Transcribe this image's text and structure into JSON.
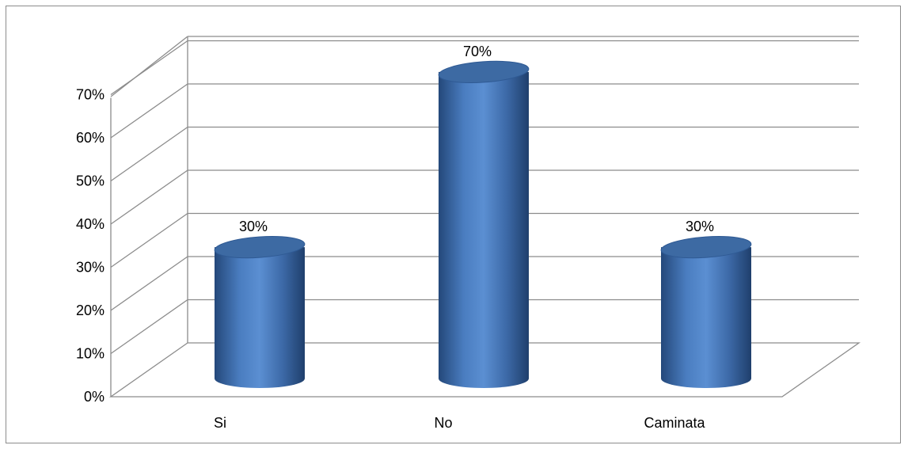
{
  "chart_data": {
    "type": "bar",
    "style": "3d-cylinder",
    "categories": [
      "Si",
      "No",
      "Caminata"
    ],
    "values": [
      30,
      70,
      30
    ],
    "data_labels": [
      "30%",
      "70%",
      "30%"
    ],
    "title": "",
    "xlabel": "",
    "ylabel": "",
    "ylim": [
      0,
      70
    ],
    "y_ticks": [
      "0%",
      "10%",
      "20%",
      "30%",
      "40%",
      "50%",
      "60%",
      "70%"
    ],
    "grid": true,
    "legend": "none",
    "colors": {
      "bar": "#4f81bd",
      "bar_dark": "#2a4f7f",
      "bar_top": "#3d6aa3",
      "grid": "#8c8c8c"
    }
  }
}
